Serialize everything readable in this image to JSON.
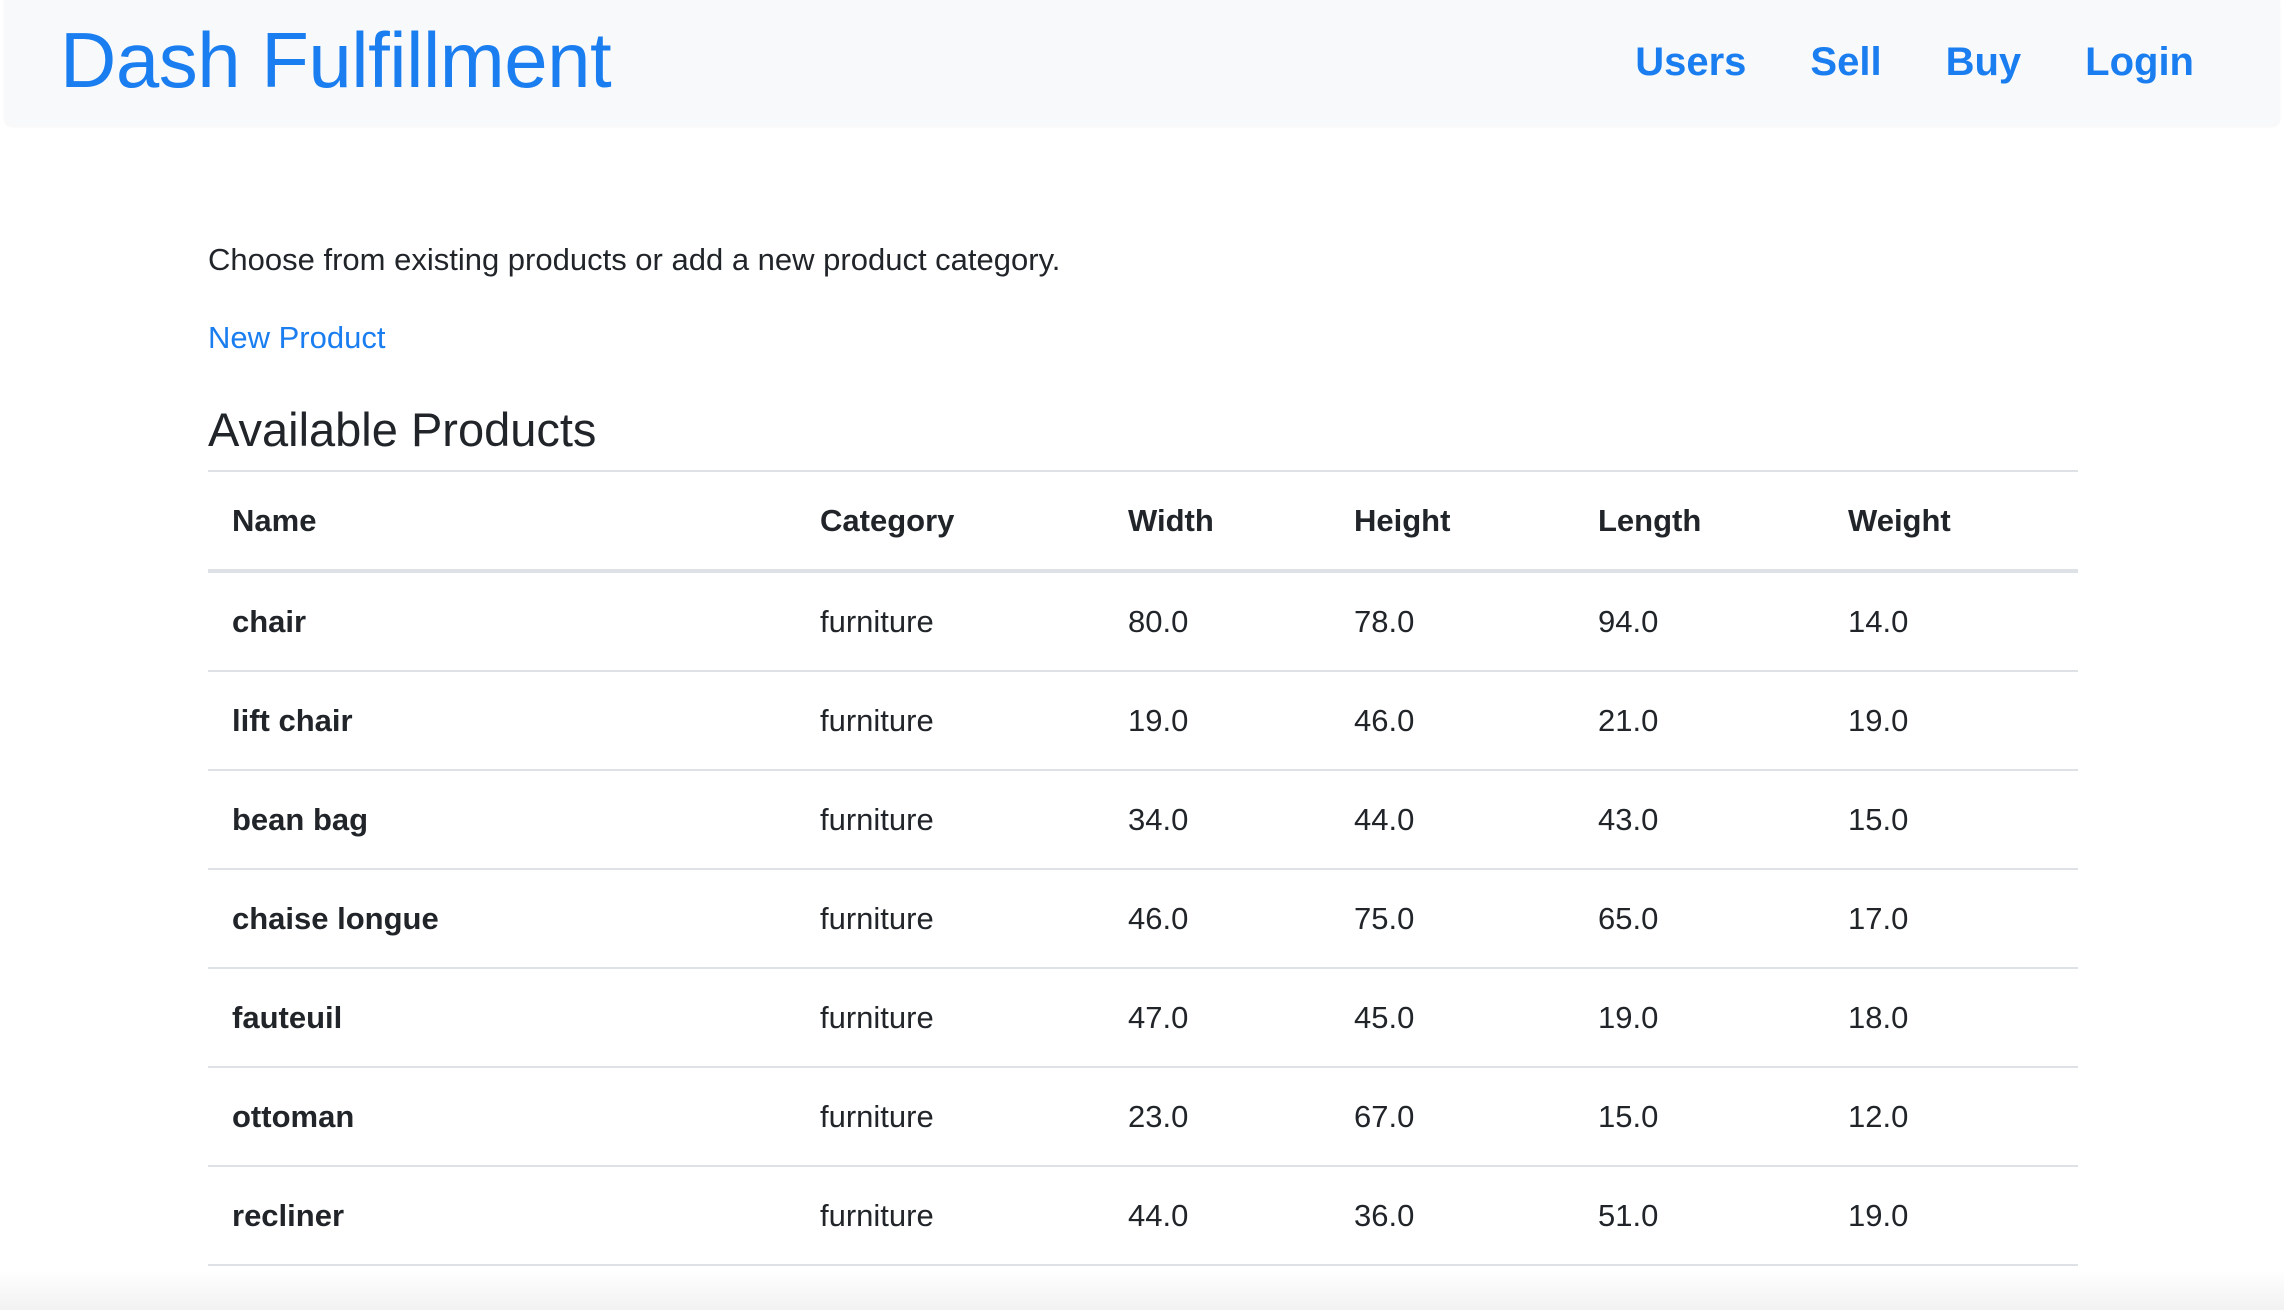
{
  "navbar": {
    "brand": "Dash Fulfillment",
    "links": [
      "Users",
      "Sell",
      "Buy",
      "Login"
    ]
  },
  "main": {
    "intro": "Choose from existing products or add a new product category.",
    "new_product_link": "New Product",
    "section_title": "Available Products",
    "table": {
      "headers": [
        "Name",
        "Category",
        "Width",
        "Height",
        "Length",
        "Weight"
      ],
      "rows": [
        [
          "chair",
          "furniture",
          "80.0",
          "78.0",
          "94.0",
          "14.0"
        ],
        [
          "lift chair",
          "furniture",
          "19.0",
          "46.0",
          "21.0",
          "19.0"
        ],
        [
          "bean bag",
          "furniture",
          "34.0",
          "44.0",
          "43.0",
          "15.0"
        ],
        [
          "chaise longue",
          "furniture",
          "46.0",
          "75.0",
          "65.0",
          "17.0"
        ],
        [
          "fauteuil",
          "furniture",
          "47.0",
          "45.0",
          "19.0",
          "18.0"
        ],
        [
          "ottoman",
          "furniture",
          "23.0",
          "67.0",
          "15.0",
          "12.0"
        ],
        [
          "recliner",
          "furniture",
          "44.0",
          "36.0",
          "51.0",
          "19.0"
        ]
      ]
    }
  },
  "colors": {
    "link": "#1a7ef0",
    "navbar_bg": "#f8f9fa",
    "text": "#212529",
    "border": "#dee2e6"
  }
}
